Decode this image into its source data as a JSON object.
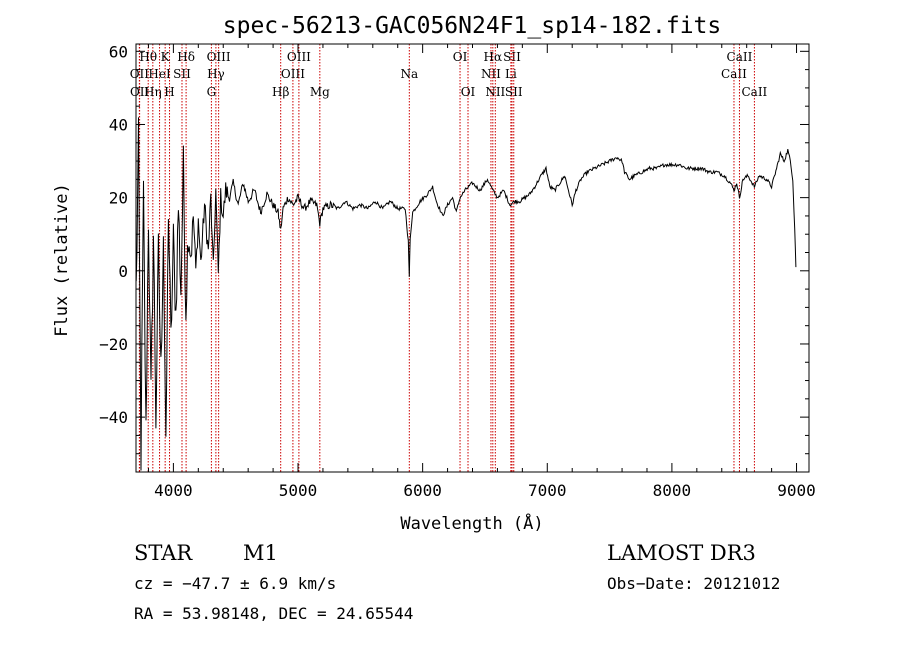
{
  "chart_data": {
    "type": "line",
    "title": "spec-56213-GAC056N24F1_sp14-182.fits",
    "xlabel": "Wavelength (Å)",
    "ylabel": "Flux (relative)",
    "xlim": [
      3700,
      9100
    ],
    "ylim": [
      -55,
      62
    ],
    "x_ticks": [
      4000,
      5000,
      6000,
      7000,
      8000,
      9000
    ],
    "y_ticks": [
      -40,
      -20,
      0,
      20,
      40,
      60
    ],
    "x_tick_labels": [
      "4000",
      "5000",
      "6000",
      "7000",
      "8000",
      "9000"
    ],
    "y_tick_labels": [
      "−40",
      "−20",
      "0",
      "20",
      "40",
      "60"
    ],
    "line_color": "#000000",
    "marker_color": "#cc0000",
    "spectral_lines": [
      {
        "label": "Hθ",
        "wave": 3798,
        "row": 0
      },
      {
        "label": "OII",
        "wave": 3727,
        "row": 1
      },
      {
        "label": "OII",
        "wave": 3729,
        "row": 2
      },
      {
        "label": "Hη",
        "wave": 3835,
        "row": 2
      },
      {
        "label": "HeI",
        "wave": 3889,
        "row": 1
      },
      {
        "label": "K",
        "wave": 3934,
        "row": 0
      },
      {
        "label": "SII",
        "wave": 4069,
        "row": 1
      },
      {
        "label": "H",
        "wave": 3969,
        "row": 2
      },
      {
        "label": "Hδ",
        "wave": 4102,
        "row": 0
      },
      {
        "label": "OIII",
        "wave": 4363,
        "row": 0
      },
      {
        "label": "Hγ",
        "wave": 4341,
        "row": 1
      },
      {
        "label": "G",
        "wave": 4305,
        "row": 2
      },
      {
        "label": "Hβ",
        "wave": 4861,
        "row": 2
      },
      {
        "label": "OIII",
        "wave": 4959,
        "row": 1
      },
      {
        "label": "OIII",
        "wave": 5007,
        "row": 0
      },
      {
        "label": "Mg",
        "wave": 5175,
        "row": 2
      },
      {
        "label": "Na",
        "wave": 5893,
        "row": 1
      },
      {
        "label": "OI",
        "wave": 6300,
        "row": 0
      },
      {
        "label": "OI",
        "wave": 6364,
        "row": 2
      },
      {
        "label": "NII",
        "wave": 6548,
        "row": 1
      },
      {
        "label": "NII",
        "wave": 6583,
        "row": 2
      },
      {
        "label": "Hα",
        "wave": 6563,
        "row": 0
      },
      {
        "label": "SII",
        "wave": 6717,
        "row": 0
      },
      {
        "label": "Li",
        "wave": 6708,
        "row": 1
      },
      {
        "label": "SII",
        "wave": 6731,
        "row": 2
      },
      {
        "label": "CaII",
        "wave": 8498,
        "row": 1
      },
      {
        "label": "CaII",
        "wave": 8542,
        "row": 0
      },
      {
        "label": "CaII",
        "wave": 8662,
        "row": 2
      }
    ],
    "spectrum_anchors": [
      [
        3702,
        -5
      ],
      [
        3720,
        35
      ],
      [
        3740,
        -50
      ],
      [
        3760,
        20
      ],
      [
        3780,
        -45
      ],
      [
        3800,
        15
      ],
      [
        3820,
        -35
      ],
      [
        3840,
        10
      ],
      [
        3860,
        -40
      ],
      [
        3880,
        5
      ],
      [
        3900,
        -28
      ],
      [
        3920,
        12
      ],
      [
        3940,
        -52
      ],
      [
        3960,
        18
      ],
      [
        3980,
        -20
      ],
      [
        4000,
        8
      ],
      [
        4020,
        -12
      ],
      [
        4040,
        18
      ],
      [
        4060,
        -5
      ],
      [
        4080,
        28
      ],
      [
        4100,
        -10
      ],
      [
        4120,
        12
      ],
      [
        4140,
        5
      ],
      [
        4160,
        15
      ],
      [
        4180,
        0
      ],
      [
        4200,
        14
      ],
      [
        4220,
        2
      ],
      [
        4250,
        18
      ],
      [
        4280,
        5
      ],
      [
        4300,
        20
      ],
      [
        4320,
        0
      ],
      [
        4340,
        22
      ],
      [
        4360,
        -1
      ],
      [
        4380,
        20
      ],
      [
        4400,
        15
      ],
      [
        4420,
        22
      ],
      [
        4450,
        20
      ],
      [
        4480,
        24
      ],
      [
        4520,
        18
      ],
      [
        4560,
        24
      ],
      [
        4600,
        19
      ],
      [
        4650,
        22
      ],
      [
        4700,
        16
      ],
      [
        4750,
        21
      ],
      [
        4800,
        18
      ],
      [
        4840,
        16
      ],
      [
        4861,
        11
      ],
      [
        4880,
        17
      ],
      [
        4920,
        20
      ],
      [
        4960,
        18
      ],
      [
        5000,
        20
      ],
      [
        5050,
        17
      ],
      [
        5100,
        19
      ],
      [
        5150,
        18
      ],
      [
        5175,
        13
      ],
      [
        5200,
        17
      ],
      [
        5260,
        18
      ],
      [
        5320,
        17
      ],
      [
        5380,
        19
      ],
      [
        5440,
        17
      ],
      [
        5500,
        18
      ],
      [
        5560,
        17
      ],
      [
        5620,
        19
      ],
      [
        5680,
        17
      ],
      [
        5740,
        19
      ],
      [
        5800,
        17
      ],
      [
        5860,
        17
      ],
      [
        5885,
        8
      ],
      [
        5893,
        -2
      ],
      [
        5900,
        9
      ],
      [
        5920,
        16
      ],
      [
        5980,
        19
      ],
      [
        6040,
        21
      ],
      [
        6080,
        23
      ],
      [
        6110,
        19
      ],
      [
        6160,
        15
      ],
      [
        6200,
        18
      ],
      [
        6240,
        20
      ],
      [
        6270,
        16
      ],
      [
        6300,
        20
      ],
      [
        6340,
        22
      ],
      [
        6400,
        24
      ],
      [
        6460,
        22
      ],
      [
        6520,
        25
      ],
      [
        6563,
        22
      ],
      [
        6600,
        20
      ],
      [
        6650,
        22
      ],
      [
        6700,
        18
      ],
      [
        6740,
        19
      ],
      [
        6780,
        19
      ],
      [
        6820,
        20
      ],
      [
        6860,
        21
      ],
      [
        6900,
        23
      ],
      [
        6950,
        26
      ],
      [
        6990,
        28
      ],
      [
        7020,
        23
      ],
      [
        7060,
        22
      ],
      [
        7100,
        24
      ],
      [
        7140,
        26
      ],
      [
        7170,
        22
      ],
      [
        7200,
        18
      ],
      [
        7230,
        22
      ],
      [
        7270,
        25
      ],
      [
        7320,
        27
      ],
      [
        7380,
        28
      ],
      [
        7440,
        29
      ],
      [
        7500,
        30
      ],
      [
        7560,
        31
      ],
      [
        7600,
        30
      ],
      [
        7620,
        27
      ],
      [
        7660,
        25
      ],
      [
        7700,
        26
      ],
      [
        7760,
        27
      ],
      [
        7820,
        28
      ],
      [
        7880,
        28
      ],
      [
        7940,
        29
      ],
      [
        8000,
        29
      ],
      [
        8060,
        29
      ],
      [
        8120,
        28
      ],
      [
        8180,
        28
      ],
      [
        8240,
        28
      ],
      [
        8300,
        27
      ],
      [
        8360,
        27
      ],
      [
        8420,
        26
      ],
      [
        8470,
        24
      ],
      [
        8498,
        22
      ],
      [
        8520,
        24
      ],
      [
        8542,
        20
      ],
      [
        8570,
        25
      ],
      [
        8610,
        26
      ],
      [
        8662,
        23
      ],
      [
        8700,
        26
      ],
      [
        8760,
        25
      ],
      [
        8800,
        23
      ],
      [
        8840,
        28
      ],
      [
        8870,
        32
      ],
      [
        8900,
        30
      ],
      [
        8930,
        33
      ],
      [
        8950,
        30
      ],
      [
        8970,
        25
      ],
      [
        8985,
        12
      ],
      [
        8995,
        1
      ]
    ]
  },
  "info": {
    "class": "STAR",
    "subclass": "M1",
    "survey": "LAMOST DR3",
    "cz": "cz = −47.7 ± 6.9 km/s",
    "obs_date": "Obs−Date: 20121012",
    "radec": "RA =  53.98148, DEC =  24.65544"
  }
}
